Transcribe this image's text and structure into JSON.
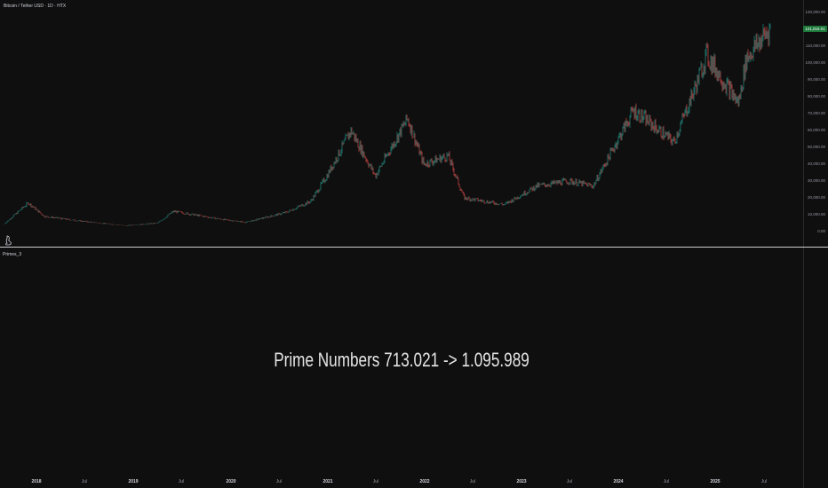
{
  "symbol": {
    "title": "Bitcoin / Tether USD · 1D · HTX",
    "last_price": "121,016.01"
  },
  "indicator": {
    "name": "Primes_3",
    "center_text": "Prime Numbers 713.021 -> 1.095.989"
  },
  "price_axis": [
    "130,000.00",
    "120,000.00",
    "110,000.00",
    "100,000.00",
    "90,000.00",
    "80,000.00",
    "70,000.00",
    "60,000.00",
    "50,000.00",
    "40,000.00",
    "30,000.00",
    "20,000.00",
    "10,000.00",
    "0.00"
  ],
  "time_axis": [
    {
      "label": "2018",
      "year": true
    },
    {
      "label": "Jul",
      "year": false
    },
    {
      "label": "2019",
      "year": true
    },
    {
      "label": "Jul",
      "year": false
    },
    {
      "label": "2020",
      "year": true
    },
    {
      "label": "Jul",
      "year": false
    },
    {
      "label": "2021",
      "year": true
    },
    {
      "label": "Jul",
      "year": false
    },
    {
      "label": "2022",
      "year": true
    },
    {
      "label": "Jul",
      "year": false
    },
    {
      "label": "2023",
      "year": true
    },
    {
      "label": "Jul",
      "year": false
    },
    {
      "label": "2024",
      "year": true
    },
    {
      "label": "Jul",
      "year": false
    },
    {
      "label": "2025",
      "year": true
    },
    {
      "label": "Jul",
      "year": false
    }
  ],
  "colors": {
    "background": "#0f0f0f",
    "up": "#26a69a",
    "down": "#ef5350",
    "price_badge": "#1e7a3b"
  },
  "icons": [
    "flag-icon"
  ],
  "chart_data": {
    "type": "line",
    "ylim": [
      0,
      130000
    ],
    "x": [
      "2017-09",
      "2017-12",
      "2018-02",
      "2018-06",
      "2018-12",
      "2019-04",
      "2019-06",
      "2019-12",
      "2020-03",
      "2020-08",
      "2020-11",
      "2021-01",
      "2021-04",
      "2021-07",
      "2021-11",
      "2022-01",
      "2022-04",
      "2022-06",
      "2022-11",
      "2023-03",
      "2023-07",
      "2023-10",
      "2024-03",
      "2024-08",
      "2024-11",
      "2024-12",
      "2025-04",
      "2025-05",
      "2025-08"
    ],
    "series": [
      {
        "values": [
          4500,
          17000,
          9000,
          6500,
          3500,
          5000,
          12000,
          7200,
          5500,
          11500,
          18000,
          33000,
          60000,
          33000,
          67000,
          40000,
          45000,
          20000,
          16000,
          27000,
          30000,
          27000,
          72000,
          53000,
          90000,
          105000,
          76000,
          103000,
          121016
        ]
      }
    ]
  }
}
